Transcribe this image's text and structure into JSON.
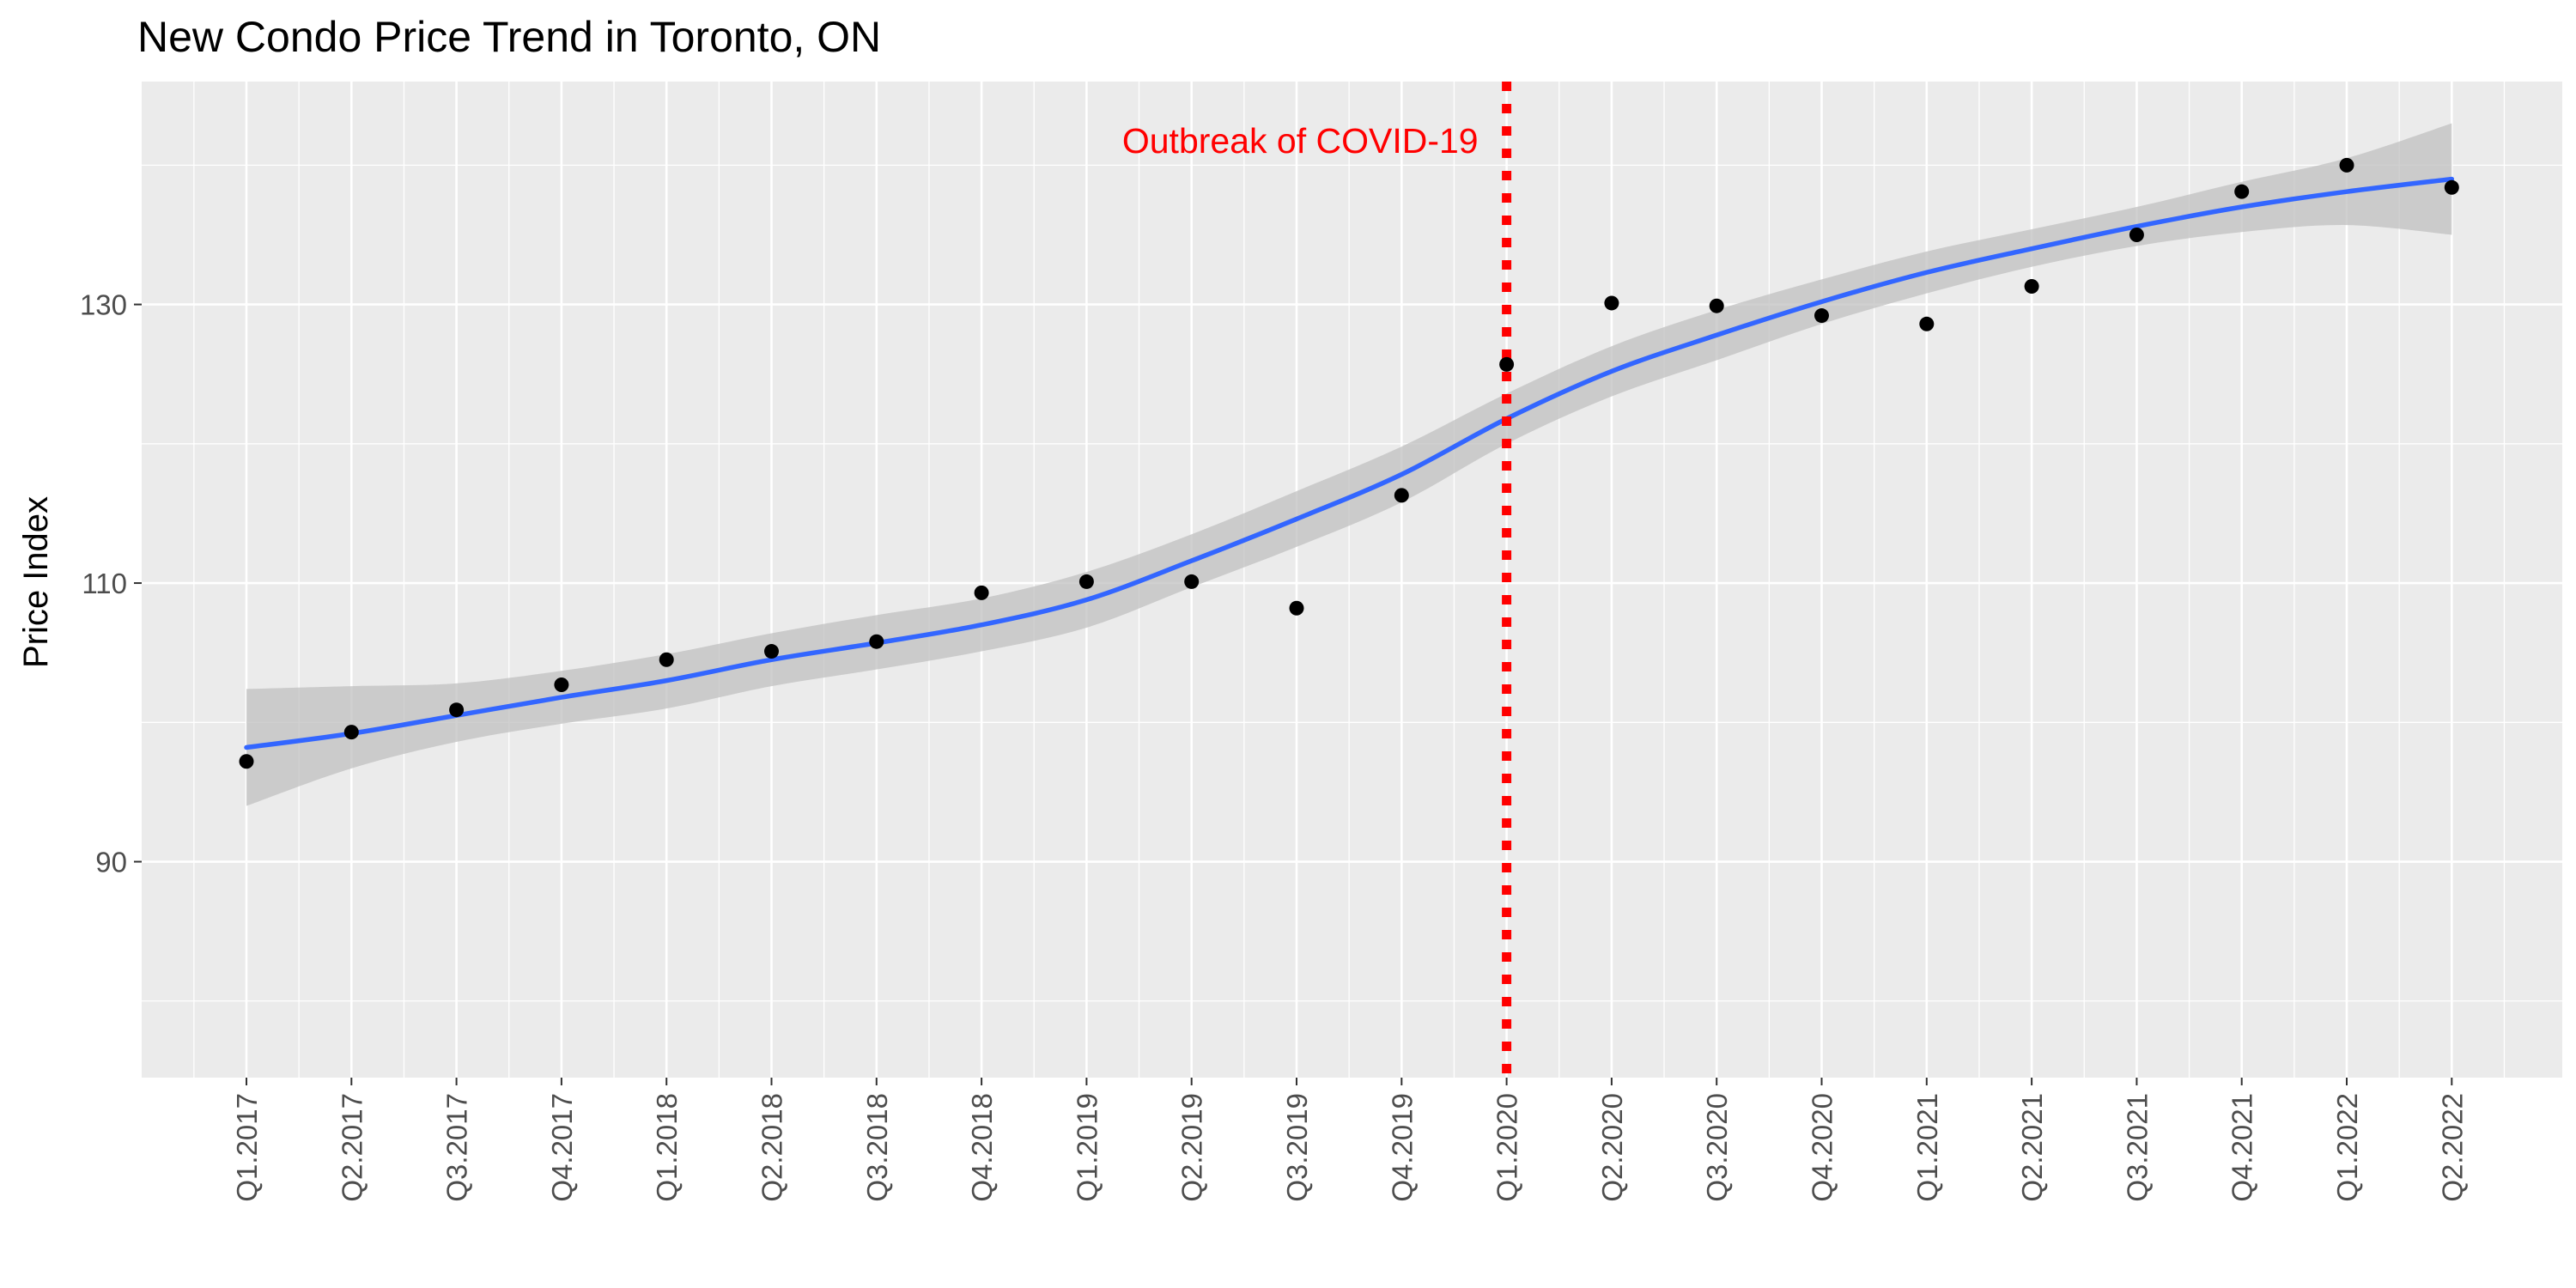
{
  "chart_data": {
    "type": "scatter",
    "title": "New Condo Price Trend in Toronto, ON",
    "xlabel": "",
    "ylabel": "Price Index",
    "categories": [
      "Q1.2017",
      "Q2.2017",
      "Q3.2017",
      "Q4.2017",
      "Q1.2018",
      "Q2.2018",
      "Q3.2018",
      "Q4.2018",
      "Q1.2019",
      "Q2.2019",
      "Q3.2019",
      "Q4.2019",
      "Q1.2020",
      "Q2.2020",
      "Q3.2020",
      "Q4.2020",
      "Q1.2021",
      "Q2.2021",
      "Q3.2021",
      "Q4.2021",
      "Q1.2022",
      "Q2.2022"
    ],
    "series": [
      {
        "values": [
          97.2,
          99.3,
          100.9,
          102.7,
          104.5,
          105.1,
          105.8,
          109.3,
          110.1,
          110.1,
          108.2,
          116.3,
          125.7,
          130.1,
          129.9,
          129.2,
          128.6,
          131.3,
          135.0,
          138.1,
          140.0,
          138.4
        ]
      }
    ],
    "smooth_fit": {
      "values": [
        98.2,
        99.2,
        100.5,
        101.8,
        103.0,
        104.5,
        105.7,
        107.0,
        108.8,
        111.6,
        114.6,
        117.8,
        121.8,
        125.2,
        127.8,
        130.2,
        132.3,
        134.0,
        135.6,
        137.0,
        138.1,
        139.0
      ],
      "lower": [
        94.0,
        96.7,
        98.6,
        99.9,
        101.0,
        102.6,
        103.8,
        105.1,
        106.8,
        109.7,
        112.6,
        115.8,
        120.0,
        123.4,
        126.0,
        128.6,
        130.8,
        132.7,
        134.2,
        135.2,
        135.7,
        135.0
      ],
      "upper": [
        102.4,
        102.6,
        102.8,
        103.7,
        104.9,
        106.4,
        107.7,
        108.9,
        110.8,
        113.5,
        116.6,
        119.8,
        123.6,
        127.0,
        129.6,
        131.8,
        133.8,
        135.4,
        137.0,
        138.8,
        140.5,
        143.0
      ]
    },
    "ylim": [
      74.5,
      146.0
    ],
    "yticks": [
      90,
      110,
      130
    ],
    "grid": true,
    "annotation": {
      "text": "Outbreak of COVID-19",
      "at_category": "Q1.2020",
      "color": "#ff0000"
    },
    "colors": {
      "panel": "#ebebeb",
      "grid": "#ffffff",
      "points": "#000000",
      "fit_line": "#3366ff",
      "ribbon": "#bebebe",
      "vline": "#ff0000"
    }
  }
}
